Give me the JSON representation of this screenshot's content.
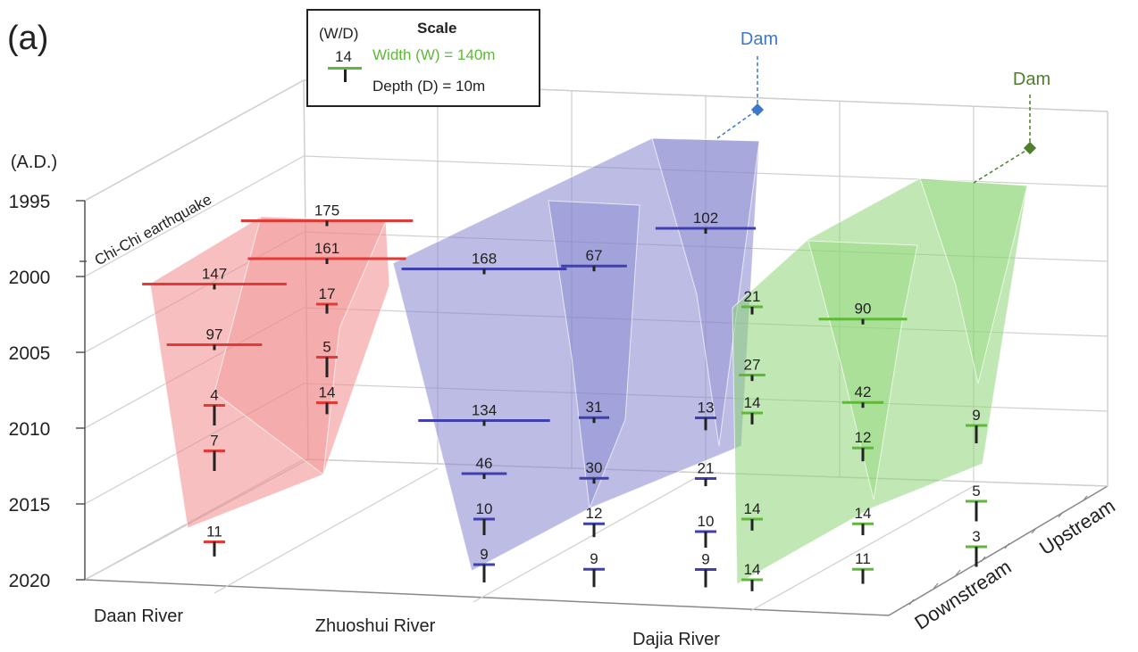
{
  "panel_label": "(a)",
  "legend": {
    "title": "Scale",
    "wd_label": "(W/D)",
    "sample_value": "14",
    "width_text": "Width (W) = 140m",
    "depth_text": "Depth (D) = 10m"
  },
  "colors": {
    "daan": "#e53935",
    "daan_fill": "#f08a8a",
    "zhuoshui": "#3f3fb0",
    "zhuoshui_fill": "#8585cf",
    "dajia": "#5fb83a",
    "dajia_fill": "#8ed676",
    "dam_zhuoshui": "#3d78c8",
    "dam_dajia": "#4f7f2e",
    "axis": "#555555",
    "grid": "#cfcfcf",
    "text": "#222222"
  },
  "chart_data": {
    "type": "3d-profile",
    "y_axis_title": "(A.D.)",
    "year_ticks": [
      "1995",
      "2000",
      "2005",
      "2010",
      "2015",
      "2020"
    ],
    "year_range": [
      1995,
      2020
    ],
    "event_label": "Chi-Chi earthquake",
    "event_year": 1999,
    "rivers": [
      "Daan River",
      "Zhuoshui River",
      "Dajia River"
    ],
    "direction_labels": [
      "Downstream",
      "Upstream"
    ],
    "series": [
      {
        "river": "Daan River",
        "profiles": [
          {
            "position": "Downstream",
            "points": [
              {
                "year": 2000.5,
                "wd": "147"
              },
              {
                "year": 2004.5,
                "wd": "97"
              },
              {
                "year": 2008.5,
                "wd": "4"
              },
              {
                "year": 2011.5,
                "wd": "7"
              },
              {
                "year": 2017.5,
                "wd": "11"
              }
            ]
          },
          {
            "position": "Upstream",
            "points": [
              {
                "year": 1999.5,
                "wd": "175"
              },
              {
                "year": 2002,
                "wd": "161"
              },
              {
                "year": 2005,
                "wd": "17"
              },
              {
                "year": 2008.5,
                "wd": "5"
              },
              {
                "year": 2011.5,
                "wd": "14"
              }
            ]
          }
        ]
      },
      {
        "river": "Zhuoshui River",
        "profiles": [
          {
            "position": "Downstream",
            "points": [
              {
                "year": 1999.5,
                "wd": "168"
              },
              {
                "year": 2009.5,
                "wd": "134"
              },
              {
                "year": 2013,
                "wd": "46"
              },
              {
                "year": 2016,
                "wd": "10"
              },
              {
                "year": 2019,
                "wd": "9"
              }
            ]
          },
          {
            "position": "Mid",
            "points": [
              {
                "year": 2001,
                "wd": "67"
              },
              {
                "year": 2011,
                "wd": "31"
              },
              {
                "year": 2015,
                "wd": "30"
              },
              {
                "year": 2018,
                "wd": "12"
              },
              {
                "year": 2021,
                "wd": "9"
              }
            ]
          },
          {
            "position": "Upstream",
            "points": [
              {
                "year": 2000,
                "wd": "102",
                "dam": "Dam"
              },
              {
                "year": 2012.5,
                "wd": "13"
              },
              {
                "year": 2016.5,
                "wd": "21"
              },
              {
                "year": 2020,
                "wd": "10"
              },
              {
                "year": 2022.5,
                "wd": "9"
              }
            ]
          }
        ]
      },
      {
        "river": "Dajia River",
        "profiles": [
          {
            "position": "Downstream",
            "points": [
              {
                "year": 2002,
                "wd": "21"
              },
              {
                "year": 2006.5,
                "wd": "27"
              },
              {
                "year": 2009,
                "wd": "14"
              },
              {
                "year": 2016,
                "wd": "14"
              },
              {
                "year": 2020,
                "wd": "14"
              }
            ]
          },
          {
            "position": "Mid",
            "points": [
              {
                "year": 2004.5,
                "wd": "90"
              },
              {
                "year": 2010,
                "wd": "42"
              },
              {
                "year": 2013,
                "wd": "12"
              },
              {
                "year": 2018,
                "wd": "14"
              },
              {
                "year": 2021,
                "wd": "11"
              }
            ]
          },
          {
            "position": "Upstream",
            "points": [
              {
                "year": 2003,
                "wd": "-",
                "dam": "Dam"
              },
              {
                "year": 2013,
                "wd": "9"
              },
              {
                "year": 2018,
                "wd": "5"
              },
              {
                "year": 2021,
                "wd": "3"
              }
            ]
          }
        ]
      }
    ]
  }
}
